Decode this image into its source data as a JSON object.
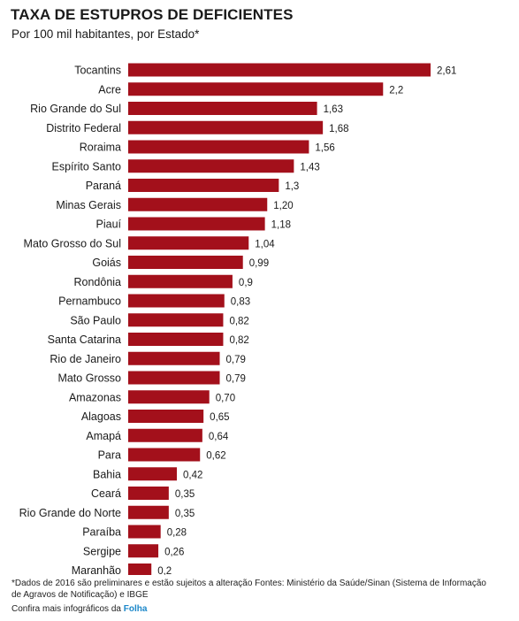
{
  "title": "TAXA DE ESTUPROS DE DEFICIENTES",
  "subtitle": "Por 100 mil habitantes, por Estado*",
  "footnote": "*Dados de 2016 são preliminares e estão sujeitos a alteração Fontes: Ministério da Saúde/Sinan (Sistema de Informação de Agravos de Notificação) e IBGE",
  "credit": {
    "text": "Confira mais infográficos da",
    "brand": "Folha"
  },
  "colors": {
    "bar": "#a3101b"
  },
  "chart_data": {
    "type": "bar",
    "orientation": "horizontal",
    "title": "TAXA DE ESTUPROS DE DEFICIENTES",
    "subtitle": "Por 100 mil habitantes, por Estado*",
    "xlim": [
      0,
      2.61
    ],
    "grid": false,
    "categories": [
      "Tocantins",
      "Acre",
      "Rio Grande do Sul",
      "Distrito Federal",
      "Roraima",
      "Espírito Santo",
      "Paraná",
      "Minas Gerais",
      "Piauí",
      "Mato Grosso do Sul",
      "Goiás",
      "Rondônia",
      "Pernambuco",
      "São Paulo",
      "Santa Catarina",
      "Rio de Janeiro",
      "Mato Grosso",
      "Amazonas",
      "Alagoas",
      "Amapá",
      "Para",
      "Bahia",
      "Ceará",
      "Rio Grande do Norte",
      "Paraíba",
      "Sergipe",
      "Maranhão"
    ],
    "values": [
      2.61,
      2.2,
      1.63,
      1.68,
      1.56,
      1.43,
      1.3,
      1.2,
      1.18,
      1.04,
      0.99,
      0.9,
      0.83,
      0.82,
      0.82,
      0.79,
      0.79,
      0.7,
      0.65,
      0.64,
      0.62,
      0.42,
      0.35,
      0.35,
      0.28,
      0.26,
      0.2
    ],
    "value_labels": [
      "2,61",
      "2,2",
      "1,63",
      "1,68",
      "1,56",
      "1,43",
      "1,3",
      "1,20",
      "1,18",
      "1,04",
      "0,99",
      "0,9",
      "0,83",
      "0,82",
      "0,82",
      "0,79",
      "0,79",
      "0,70",
      "0,65",
      "0,64",
      "0,62",
      "0,42",
      "0,35",
      "0,35",
      "0,28",
      "0,26",
      "0,2"
    ]
  }
}
